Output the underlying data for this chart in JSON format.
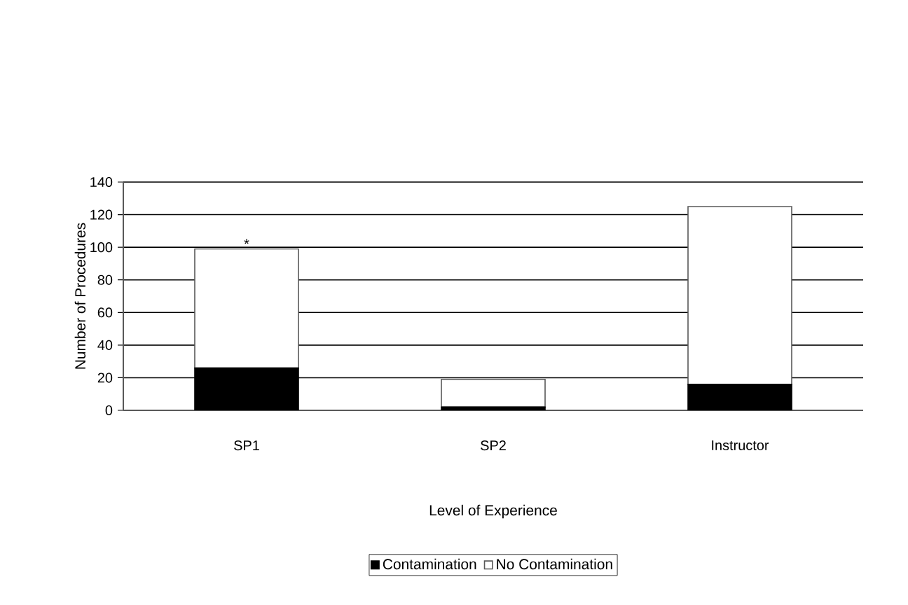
{
  "chart_data": {
    "type": "bar",
    "stacked": true,
    "xlabel": "Level of Experience",
    "ylabel": "Number of Procedures",
    "categories": [
      "SP1",
      "SP2",
      "Instructor"
    ],
    "series": [
      {
        "name": "Contamination",
        "color": "#000000",
        "values": [
          26,
          2,
          16
        ]
      },
      {
        "name": "No Contamination",
        "color": "#ffffff",
        "values": [
          73,
          17,
          109
        ]
      }
    ],
    "ylim": [
      0,
      140
    ],
    "yticks": [
      0,
      20,
      40,
      60,
      80,
      100,
      120,
      140
    ],
    "grid": "y",
    "legend": "bottom",
    "annotations": [
      {
        "text": "*",
        "x": "SP1",
        "y": 99
      }
    ]
  }
}
